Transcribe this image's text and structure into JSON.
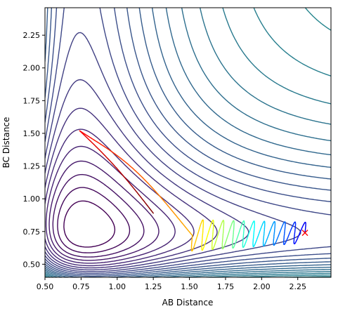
{
  "chart_data": {
    "type": "line",
    "subtype": "contour-with-trajectory",
    "title": "",
    "xlabel": "AB Distance",
    "ylabel": "BC Distance",
    "xlim": [
      0.5,
      2.48
    ],
    "ylim": [
      0.4,
      2.46
    ],
    "xticks": [
      "0.50",
      "0.75",
      "1.00",
      "1.25",
      "1.50",
      "1.75",
      "2.00",
      "2.25"
    ],
    "yticks": [
      "0.50",
      "0.75",
      "1.00",
      "1.25",
      "1.50",
      "1.75",
      "2.00",
      "2.25"
    ],
    "grid": false,
    "legend": "none",
    "colormap": "viridis",
    "potential": {
      "De": 4.7,
      "beta": 2.0,
      "r0": 0.74,
      "levels_low": [
        -3.6,
        -3.2,
        -2.8,
        -2.4,
        -2.0,
        -1.6,
        -1.2,
        -0.8,
        -0.4,
        0.0,
        0.4,
        0.8,
        1.2,
        1.6,
        2.0,
        2.4,
        2.8,
        3.2,
        3.6,
        4.0,
        4.4
      ],
      "levels_wall": [
        5.0,
        5.8,
        6.6,
        7.4,
        8.2,
        9.0,
        10.0,
        11.0,
        12.0,
        13.0
      ]
    },
    "trajectory": {
      "start": [
        2.3,
        0.74
      ],
      "turning_point": [
        0.74,
        1.52
      ],
      "end": [
        1.25,
        0.89
      ],
      "colormap": "jet"
    },
    "marker": {
      "x": 2.3,
      "y": 0.74,
      "symbol": "x",
      "color": "#ff0000"
    }
  }
}
